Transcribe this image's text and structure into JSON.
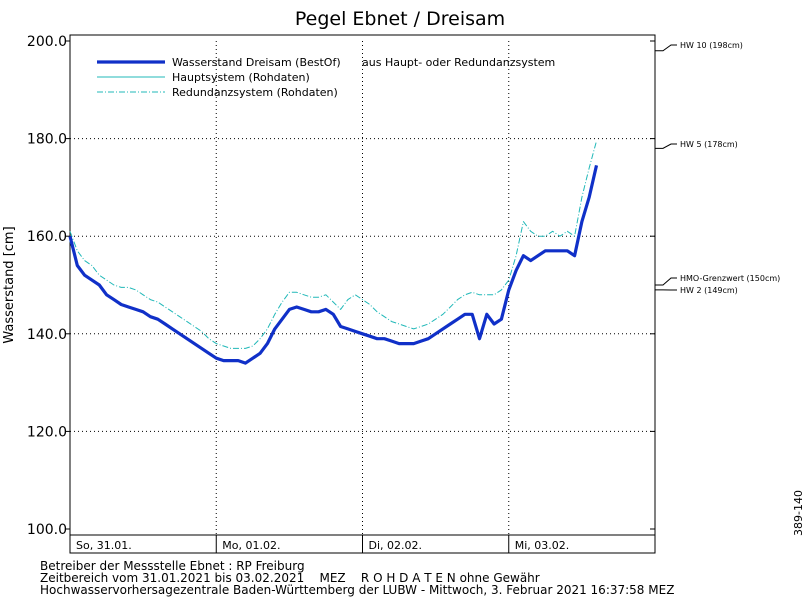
{
  "chart_data": {
    "type": "line",
    "title": "Pegel Ebnet / Dreisam",
    "ylabel": "Wasserstand [cm]",
    "ylim": [
      100,
      200
    ],
    "yticks": [
      "100.0",
      "120.0",
      "140.0",
      "160.0",
      "180.0",
      "200.0"
    ],
    "ytick_values": [
      100,
      120,
      140,
      160,
      180,
      200
    ],
    "xlim": [
      0,
      4
    ],
    "x_ticks": [
      {
        "x": 0,
        "label": "So, 31.01."
      },
      {
        "x": 1,
        "label": "Mo, 01.02."
      },
      {
        "x": 2,
        "label": "Di, 02.02."
      },
      {
        "x": 3,
        "label": "Mi, 03.02."
      }
    ],
    "legend_position": "top-left",
    "grid": true,
    "thresholds": [
      {
        "value": 198,
        "label": "HW 10 (198cm)"
      },
      {
        "value": 178,
        "label": "HW 5 (178cm)"
      },
      {
        "value": 150,
        "label": "HMO-Grenzwert (150cm)"
      },
      {
        "value": 149,
        "label": "HW 2 (149cm)"
      }
    ],
    "series": [
      {
        "name": "Wasserstand Dreisam (BestOf)",
        "legend_suffix": "aus Haupt- oder Redundanzsystem",
        "color": "#1030c8",
        "style": "thick",
        "points": [
          [
            0.0,
            160
          ],
          [
            0.05,
            154
          ],
          [
            0.1,
            152
          ],
          [
            0.15,
            151
          ],
          [
            0.2,
            150
          ],
          [
            0.25,
            148
          ],
          [
            0.3,
            147
          ],
          [
            0.35,
            146
          ],
          [
            0.4,
            145.5
          ],
          [
            0.45,
            145
          ],
          [
            0.5,
            144.5
          ],
          [
            0.55,
            143.5
          ],
          [
            0.6,
            143
          ],
          [
            0.65,
            142
          ],
          [
            0.7,
            141
          ],
          [
            0.75,
            140
          ],
          [
            0.8,
            139
          ],
          [
            0.85,
            138
          ],
          [
            0.9,
            137
          ],
          [
            0.95,
            136
          ],
          [
            1.0,
            135
          ],
          [
            1.05,
            134.5
          ],
          [
            1.1,
            134.5
          ],
          [
            1.15,
            134.5
          ],
          [
            1.2,
            134
          ],
          [
            1.25,
            135
          ],
          [
            1.3,
            136
          ],
          [
            1.35,
            138
          ],
          [
            1.4,
            141
          ],
          [
            1.45,
            143
          ],
          [
            1.5,
            145
          ],
          [
            1.55,
            145.5
          ],
          [
            1.6,
            145
          ],
          [
            1.65,
            144.5
          ],
          [
            1.7,
            144.5
          ],
          [
            1.75,
            145
          ],
          [
            1.8,
            144
          ],
          [
            1.85,
            141.5
          ],
          [
            1.9,
            141
          ],
          [
            1.95,
            140.5
          ],
          [
            2.0,
            140
          ],
          [
            2.05,
            139.5
          ],
          [
            2.1,
            139
          ],
          [
            2.15,
            139
          ],
          [
            2.2,
            138.5
          ],
          [
            2.25,
            138
          ],
          [
            2.3,
            138
          ],
          [
            2.35,
            138
          ],
          [
            2.4,
            138.5
          ],
          [
            2.45,
            139
          ],
          [
            2.5,
            140
          ],
          [
            2.55,
            141
          ],
          [
            2.6,
            142
          ],
          [
            2.65,
            143
          ],
          [
            2.7,
            144
          ],
          [
            2.75,
            144
          ],
          [
            2.8,
            139
          ],
          [
            2.85,
            144
          ],
          [
            2.9,
            142
          ],
          [
            2.95,
            143
          ],
          [
            3.0,
            149
          ],
          [
            3.05,
            153
          ],
          [
            3.1,
            156
          ],
          [
            3.15,
            155
          ],
          [
            3.2,
            156
          ],
          [
            3.25,
            157
          ],
          [
            3.3,
            157
          ],
          [
            3.35,
            157
          ],
          [
            3.4,
            157
          ],
          [
            3.45,
            156
          ],
          [
            3.5,
            163
          ],
          [
            3.55,
            168
          ],
          [
            3.6,
            174.5
          ]
        ]
      },
      {
        "name": "Hauptsystem (Rohdaten)",
        "color": "#20b8b8",
        "style": "solid",
        "points": [
          [
            0.0,
            159
          ],
          [
            0.05,
            154
          ],
          [
            0.1,
            152
          ],
          [
            0.15,
            151
          ],
          [
            0.2,
            150
          ],
          [
            0.25,
            148
          ],
          [
            0.3,
            147
          ],
          [
            0.35,
            146
          ],
          [
            0.4,
            145.5
          ],
          [
            0.45,
            145
          ],
          [
            0.5,
            144.5
          ],
          [
            0.55,
            143.5
          ],
          [
            0.6,
            143
          ],
          [
            0.65,
            142
          ],
          [
            0.7,
            141
          ],
          [
            0.75,
            140
          ],
          [
            0.8,
            139
          ],
          [
            0.85,
            138
          ],
          [
            0.9,
            137
          ],
          [
            0.95,
            136
          ],
          [
            1.0,
            135
          ],
          [
            1.05,
            134.5
          ],
          [
            1.1,
            134.5
          ],
          [
            1.15,
            134.5
          ],
          [
            1.2,
            134
          ],
          [
            1.25,
            135
          ],
          [
            1.3,
            136
          ],
          [
            1.35,
            138
          ],
          [
            1.4,
            141
          ],
          [
            1.45,
            143
          ],
          [
            1.5,
            145
          ],
          [
            1.55,
            145.5
          ],
          [
            1.6,
            145
          ],
          [
            1.65,
            144.5
          ],
          [
            1.7,
            144.5
          ],
          [
            1.75,
            145
          ],
          [
            1.8,
            144
          ],
          [
            1.85,
            141.5
          ],
          [
            1.9,
            141
          ],
          [
            1.95,
            140.5
          ],
          [
            2.0,
            140
          ],
          [
            2.05,
            139.5
          ],
          [
            2.1,
            139
          ],
          [
            2.15,
            139
          ],
          [
            2.2,
            138.5
          ],
          [
            2.25,
            138
          ],
          [
            2.3,
            138
          ],
          [
            2.35,
            138
          ],
          [
            2.4,
            138.5
          ],
          [
            2.45,
            139
          ],
          [
            2.5,
            140
          ],
          [
            2.55,
            141
          ],
          [
            2.6,
            142
          ],
          [
            2.65,
            143
          ],
          [
            2.7,
            144
          ],
          [
            2.75,
            144
          ],
          [
            2.8,
            139
          ],
          [
            2.85,
            144
          ],
          [
            2.9,
            142
          ],
          [
            2.95,
            143
          ],
          [
            3.0,
            149
          ],
          [
            3.05,
            153
          ],
          [
            3.1,
            156
          ],
          [
            3.15,
            155
          ],
          [
            3.2,
            156
          ],
          [
            3.25,
            157
          ],
          [
            3.3,
            157
          ],
          [
            3.35,
            157
          ],
          [
            3.4,
            157
          ],
          [
            3.45,
            156
          ],
          [
            3.5,
            163
          ],
          [
            3.55,
            168
          ],
          [
            3.6,
            174.5
          ]
        ]
      },
      {
        "name": "Redundanzsystem (Rohdaten)",
        "color": "#20b8b8",
        "style": "dashdot",
        "points": [
          [
            0.0,
            161
          ],
          [
            0.05,
            157
          ],
          [
            0.1,
            155
          ],
          [
            0.15,
            154
          ],
          [
            0.2,
            152
          ],
          [
            0.25,
            151
          ],
          [
            0.3,
            150
          ],
          [
            0.35,
            149.5
          ],
          [
            0.4,
            149.5
          ],
          [
            0.45,
            149
          ],
          [
            0.5,
            148
          ],
          [
            0.55,
            147
          ],
          [
            0.6,
            146.5
          ],
          [
            0.65,
            145.5
          ],
          [
            0.7,
            144.5
          ],
          [
            0.75,
            143.5
          ],
          [
            0.8,
            142.5
          ],
          [
            0.85,
            141.5
          ],
          [
            0.9,
            140.5
          ],
          [
            0.95,
            139
          ],
          [
            1.0,
            138
          ],
          [
            1.05,
            137.5
          ],
          [
            1.1,
            137
          ],
          [
            1.15,
            137
          ],
          [
            1.2,
            137
          ],
          [
            1.25,
            137.5
          ],
          [
            1.3,
            139
          ],
          [
            1.35,
            141
          ],
          [
            1.4,
            144
          ],
          [
            1.45,
            146.5
          ],
          [
            1.5,
            148.5
          ],
          [
            1.55,
            148.5
          ],
          [
            1.6,
            148
          ],
          [
            1.65,
            147.5
          ],
          [
            1.7,
            147.5
          ],
          [
            1.75,
            148
          ],
          [
            1.8,
            146.5
          ],
          [
            1.85,
            145
          ],
          [
            1.9,
            147
          ],
          [
            1.95,
            148
          ],
          [
            2.0,
            147
          ],
          [
            2.05,
            146
          ],
          [
            2.1,
            144.5
          ],
          [
            2.15,
            143.5
          ],
          [
            2.2,
            142.5
          ],
          [
            2.25,
            142
          ],
          [
            2.3,
            141.5
          ],
          [
            2.35,
            141
          ],
          [
            2.4,
            141.5
          ],
          [
            2.45,
            142
          ],
          [
            2.5,
            143
          ],
          [
            2.55,
            144
          ],
          [
            2.6,
            145.5
          ],
          [
            2.65,
            147
          ],
          [
            2.7,
            148
          ],
          [
            2.75,
            148.5
          ],
          [
            2.8,
            148
          ],
          [
            2.85,
            148
          ],
          [
            2.9,
            148
          ],
          [
            2.95,
            149
          ],
          [
            3.0,
            151
          ],
          [
            3.05,
            156
          ],
          [
            3.1,
            163
          ],
          [
            3.15,
            161
          ],
          [
            3.2,
            160
          ],
          [
            3.25,
            160
          ],
          [
            3.3,
            161
          ],
          [
            3.35,
            160
          ],
          [
            3.4,
            161
          ],
          [
            3.45,
            160
          ],
          [
            3.5,
            168
          ],
          [
            3.55,
            174
          ],
          [
            3.6,
            179.5
          ]
        ]
      }
    ]
  },
  "footer": {
    "line1": "Betreiber der Messstelle Ebnet : RP Freiburg",
    "line2": "Zeitbereich vom 31.01.2021 bis 03.02.2021    MEZ    R O H D A T E N ohne Gewähr",
    "line3": "Hochwasservorhersagezentrale Baden-Württemberg der LUBW - Mittwoch, 3. Februar 2021 16:37:58 MEZ"
  },
  "side_code": "389-140"
}
